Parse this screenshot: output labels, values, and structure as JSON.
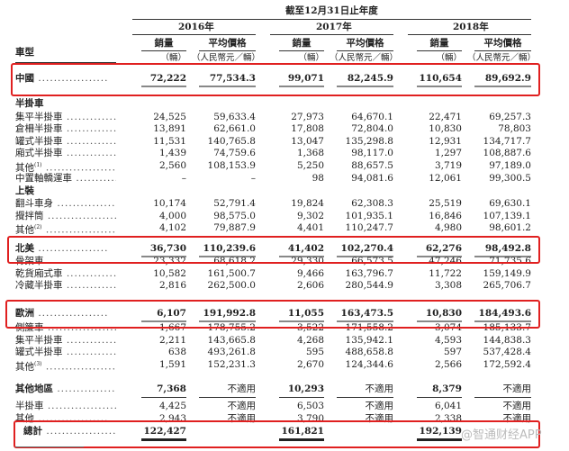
{
  "header": {
    "period": "截至12月31日止年度",
    "years": [
      "2016年",
      "2017年",
      "2018年"
    ],
    "type_label": "車型",
    "volume_label": "銷量",
    "price_label": "平均價格",
    "volume_unit": "（輛）",
    "price_unit": "（人民幣元／輛）"
  },
  "rows": [
    {
      "label": "中國",
      "kind": "region",
      "values": [
        "72,222",
        "77,534.3",
        "99,071",
        "82,245.9",
        "110,654",
        "89,692.9"
      ]
    },
    {
      "label": "半掛車",
      "kind": "section",
      "values": []
    },
    {
      "label": "集平半掛車",
      "kind": "data",
      "values": [
        "24,525",
        "59,633.4",
        "27,973",
        "64,670.1",
        "22,471",
        "69,257.3"
      ]
    },
    {
      "label": "倉柵半掛車",
      "kind": "data",
      "values": [
        "13,891",
        "62,661.0",
        "17,808",
        "72,804.0",
        "10,830",
        "78,803"
      ]
    },
    {
      "label": "罐式半掛車",
      "kind": "data",
      "values": [
        "11,531",
        "140,765.8",
        "13,047",
        "135,298.8",
        "12,931",
        "134,717.7"
      ]
    },
    {
      "label": "廂式半掛車",
      "kind": "data",
      "values": [
        "1,439",
        "74,759.6",
        "1,368",
        "98,117.0",
        "1,297",
        "108,887.6"
      ]
    },
    {
      "label": "其他",
      "sup": "(1)",
      "kind": "data",
      "values": [
        "2,560",
        "108,153.9",
        "5,250",
        "88,657.5",
        "3,719",
        "97,189.0"
      ]
    },
    {
      "label": "中置軸轎運車",
      "kind": "data",
      "values": [
        "–",
        "–",
        "98",
        "94,081.6",
        "12,061",
        "99,300.5"
      ]
    },
    {
      "label": "上裝",
      "kind": "section",
      "values": []
    },
    {
      "label": "翻斗車身",
      "kind": "data",
      "values": [
        "10,174",
        "52,791.4",
        "19,824",
        "62,308.3",
        "25,519",
        "69,630.1"
      ]
    },
    {
      "label": "攪拌筒",
      "kind": "data",
      "values": [
        "4,000",
        "98,575.0",
        "9,302",
        "101,935.1",
        "16,846",
        "107,139.1"
      ]
    },
    {
      "label": "其他",
      "sup": "(2)",
      "kind": "data",
      "values": [
        "4,102",
        "79,887.9",
        "4,401",
        "110,247.7",
        "4,980",
        "98,601.2"
      ]
    },
    {
      "label": "北美",
      "kind": "region",
      "values": [
        "36,730",
        "110,239.6",
        "41,402",
        "102,270.4",
        "62,276",
        "98,492.8"
      ]
    },
    {
      "label": "骨架車",
      "kind": "data",
      "values": [
        "23,332",
        "68,618.2",
        "29,330",
        "66,573.5",
        "47,246",
        "71,735.6"
      ]
    },
    {
      "label": "乾貨廂式車",
      "kind": "data",
      "values": [
        "10,582",
        "161,500.7",
        "9,466",
        "163,796.7",
        "11,722",
        "159,149.9"
      ]
    },
    {
      "label": "冷藏半掛車",
      "kind": "data",
      "values": [
        "2,816",
        "262,500.0",
        "2,606",
        "280,544.9",
        "3,308",
        "265,706.7"
      ]
    },
    {
      "label": "歐洲",
      "kind": "region",
      "values": [
        "6,107",
        "191,992.8",
        "11,055",
        "163,473.5",
        "10,830",
        "184,493.6"
      ]
    },
    {
      "label": "側簾車",
      "kind": "data",
      "values": [
        "1,667",
        "178,755.2",
        "3,522",
        "171,558.2",
        "3,074",
        "185,133.7"
      ]
    },
    {
      "label": "集平半掛車",
      "kind": "data",
      "values": [
        "2,211",
        "143,665.8",
        "4,268",
        "135,942.1",
        "4,593",
        "144,838.3"
      ]
    },
    {
      "label": "罐式半掛車",
      "kind": "data",
      "values": [
        "638",
        "493,261.8",
        "595",
        "488,658.8",
        "597",
        "537,428.4"
      ]
    },
    {
      "label": "其他",
      "sup": "(3)",
      "kind": "data",
      "values": [
        "1,591",
        "152,231.3",
        "2,670",
        "124,344.6",
        "2,566",
        "172,592.4"
      ]
    },
    {
      "label": "其他地區",
      "kind": "other-region",
      "values": [
        "7,368",
        "不適用",
        "10,293",
        "不適用",
        "8,379",
        "不適用"
      ]
    },
    {
      "label": "半掛車",
      "kind": "data",
      "values": [
        "4,425",
        "不適用",
        "6,503",
        "不適用",
        "6,041",
        "不適用"
      ]
    },
    {
      "label": "其他",
      "kind": "data",
      "values": [
        "2,943",
        "不適用",
        "3,790",
        "不適用",
        "2,338",
        "不適用"
      ]
    },
    {
      "label": "總計",
      "kind": "total",
      "values": [
        "122,427",
        "",
        "161,821",
        "",
        "192,139",
        ""
      ]
    }
  ],
  "highlight_color": "#e02020",
  "watermark": "@智通财经APP"
}
